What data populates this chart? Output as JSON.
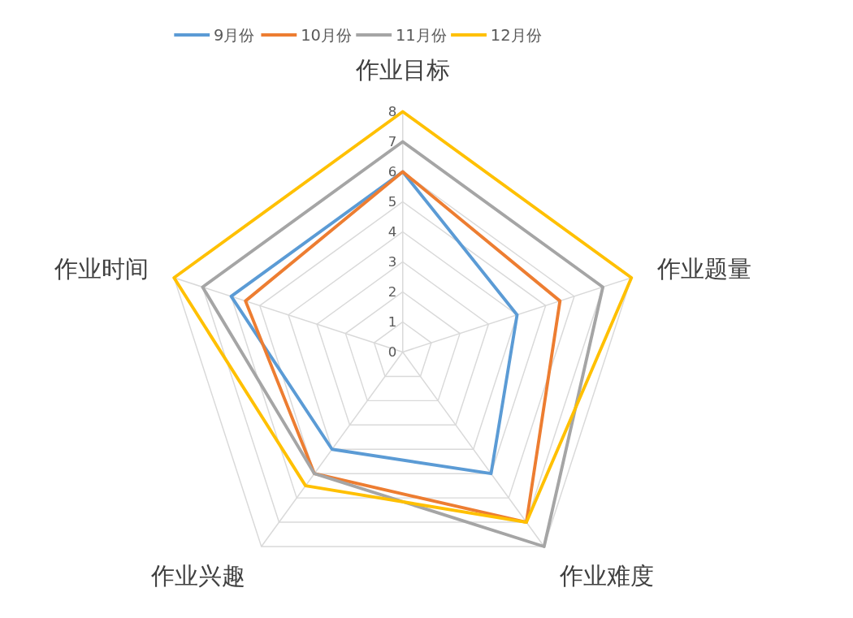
{
  "chart_data": {
    "type": "radar",
    "categories": [
      "作业目标",
      "作业题量",
      "作业难度",
      "作业兴趣",
      "作业时间"
    ],
    "series": [
      {
        "name": "9月份",
        "color": "#5b9bd5",
        "values": [
          6,
          4,
          5,
          4,
          6
        ]
      },
      {
        "name": "10月份",
        "color": "#ed7d31",
        "values": [
          6,
          5.5,
          7,
          5,
          5.5
        ]
      },
      {
        "name": "11月份",
        "color": "#a5a5a5",
        "values": [
          7,
          7,
          8,
          5,
          7
        ]
      },
      {
        "name": "12月份",
        "color": "#ffc000",
        "values": [
          8,
          8,
          7,
          5.5,
          8
        ]
      }
    ],
    "ylim": [
      0,
      8
    ],
    "yticks": [
      0,
      1,
      2,
      3,
      4,
      5,
      6,
      7,
      8
    ],
    "grid": true,
    "legend": "top",
    "marker": "none",
    "line_style": "solid"
  }
}
